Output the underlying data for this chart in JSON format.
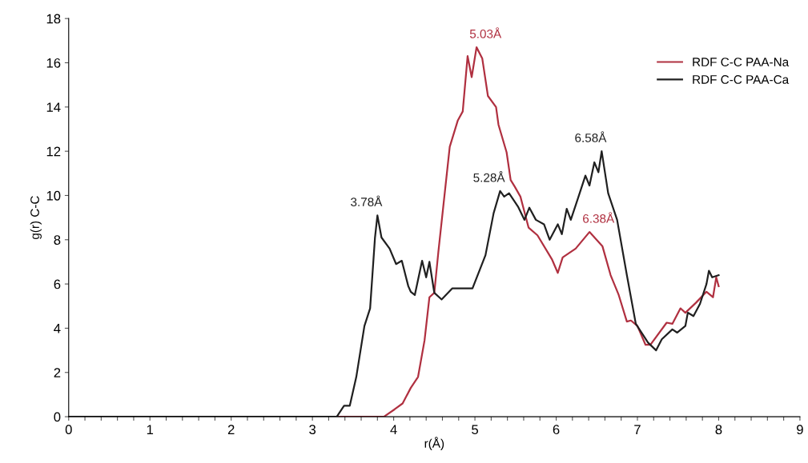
{
  "chart_data": {
    "type": "line",
    "xlabel": "r(Å)",
    "ylabel": "g(r) C-C",
    "xlim": [
      0,
      9
    ],
    "ylim": [
      0,
      18
    ],
    "xticks": [
      0,
      {
        "value": 0.2,
        "label": null
      },
      {
        "value": 0.4,
        "label": null
      },
      {
        "value": 0.6,
        "label": null
      },
      {
        "value": 0.8,
        "label": null
      },
      1,
      {
        "value": 1.2,
        "label": null
      },
      {
        "value": 1.4,
        "label": null
      },
      {
        "value": 1.6,
        "label": null
      },
      {
        "value": 1.8,
        "label": null
      },
      2,
      {
        "value": 2.2,
        "label": null
      },
      {
        "value": 2.4,
        "label": null
      },
      {
        "value": 2.6,
        "label": null
      },
      {
        "value": 2.8,
        "label": null
      },
      3,
      {
        "value": 3.2,
        "label": null
      },
      {
        "value": 3.4,
        "label": null
      },
      {
        "value": 3.6,
        "label": null
      },
      {
        "value": 3.8,
        "label": null
      },
      4,
      {
        "value": 4.2,
        "label": null
      },
      {
        "value": 4.4,
        "label": null
      },
      {
        "value": 4.6,
        "label": null
      },
      {
        "value": 4.8,
        "label": null
      },
      5,
      {
        "value": 5.2,
        "label": null
      },
      {
        "value": 5.4,
        "label": null
      },
      {
        "value": 5.6,
        "label": null
      },
      {
        "value": 5.8,
        "label": null
      },
      6,
      {
        "value": 6.2,
        "label": null
      },
      {
        "value": 6.4,
        "label": null
      },
      {
        "value": 6.6,
        "label": null
      },
      {
        "value": 6.8,
        "label": null
      },
      7,
      {
        "value": 7.2,
        "label": null
      },
      {
        "value": 7.4,
        "label": null
      },
      {
        "value": 7.6,
        "label": null
      },
      {
        "value": 7.8,
        "label": null
      },
      8,
      {
        "value": 8.2,
        "label": null
      },
      {
        "value": 8.4,
        "label": null
      },
      {
        "value": 8.6,
        "label": null
      },
      {
        "value": 8.8,
        "label": null
      },
      9
    ],
    "yticks": [
      0,
      2,
      4,
      6,
      8,
      10,
      12,
      14,
      16,
      18
    ],
    "grid": false,
    "legend": "top right",
    "marker": "none",
    "line_style": "solid",
    "series": [
      {
        "name": "RDF C-C PAA-Na",
        "color": "#b03040",
        "x": [
          0,
          3.88,
          4.01,
          4.11,
          4.21,
          4.3,
          4.38,
          4.44,
          4.5,
          4.55,
          4.69,
          4.79,
          4.85,
          4.91,
          4.96,
          5.02,
          5.09,
          5.16,
          5.26,
          5.29,
          5.39,
          5.44,
          5.49,
          5.56,
          5.66,
          5.77,
          5.95,
          6.02,
          6.08,
          6.24,
          6.41,
          6.51,
          6.57,
          6.67,
          6.77,
          6.87,
          6.92,
          7.0,
          7.1,
          7.16,
          7.36,
          7.43,
          7.53,
          7.59,
          7.72,
          7.85,
          7.93,
          7.97,
          8.0
        ],
        "values": [
          0,
          0,
          0.33,
          0.6,
          1.3,
          1.8,
          3.45,
          5.4,
          5.6,
          7.45,
          12.2,
          13.4,
          13.8,
          16.3,
          15.35,
          16.7,
          16.2,
          14.5,
          14.0,
          13.2,
          11.95,
          10.7,
          10.4,
          9.95,
          8.55,
          8.2,
          7.1,
          6.5,
          7.2,
          7.6,
          8.35,
          7.95,
          7.7,
          6.4,
          5.5,
          4.3,
          4.35,
          4.1,
          3.25,
          3.25,
          4.25,
          4.2,
          4.9,
          4.7,
          5.15,
          5.65,
          5.4,
          6.3,
          5.9
        ]
      },
      {
        "name": "RDF C-C PAA-Ca",
        "color": "#202020",
        "x": [
          0,
          3.3,
          3.39,
          3.46,
          3.54,
          3.64,
          3.71,
          3.77,
          3.8,
          3.85,
          3.95,
          4.03,
          4.1,
          4.18,
          4.21,
          4.26,
          4.35,
          4.4,
          4.44,
          4.5,
          4.59,
          4.72,
          4.97,
          5.13,
          5.23,
          5.31,
          5.36,
          5.42,
          5.53,
          5.61,
          5.67,
          5.75,
          5.85,
          5.92,
          6.02,
          6.07,
          6.13,
          6.18,
          6.28,
          6.36,
          6.41,
          6.47,
          6.52,
          6.56,
          6.64,
          6.75,
          6.87,
          6.98,
          7.13,
          7.23,
          7.3,
          7.43,
          7.49,
          7.59,
          7.62,
          7.69,
          7.77,
          7.85,
          7.88,
          7.92,
          8.0
        ],
        "values": [
          0,
          0,
          0.5,
          0.5,
          1.8,
          4.1,
          4.9,
          8.1,
          9.1,
          8.1,
          7.6,
          6.9,
          7.05,
          5.9,
          5.65,
          5.5,
          7.05,
          6.3,
          7.0,
          5.6,
          5.3,
          5.8,
          5.8,
          7.3,
          9.2,
          10.2,
          9.95,
          10.1,
          9.5,
          8.9,
          9.45,
          8.9,
          8.7,
          8.0,
          8.7,
          8.25,
          9.4,
          8.9,
          10.0,
          10.9,
          10.45,
          11.5,
          11.05,
          12.0,
          10.1,
          8.9,
          6.4,
          4.2,
          3.35,
          3.0,
          3.5,
          3.95,
          3.8,
          4.1,
          4.7,
          4.55,
          5.1,
          6.0,
          6.6,
          6.3,
          6.4
        ]
      }
    ],
    "annotations": [
      {
        "text": "5.03Å",
        "x": 5.02,
        "y": 16.7
      },
      {
        "text": "3.78Å",
        "x": 3.8,
        "y": 9.1
      },
      {
        "text": "5.28Å",
        "x": 5.31,
        "y": 10.2
      },
      {
        "text": "6.58Å",
        "x": 6.56,
        "y": 12.0
      },
      {
        "text": "6.38Å",
        "x": 6.41,
        "y": 8.35
      }
    ]
  }
}
